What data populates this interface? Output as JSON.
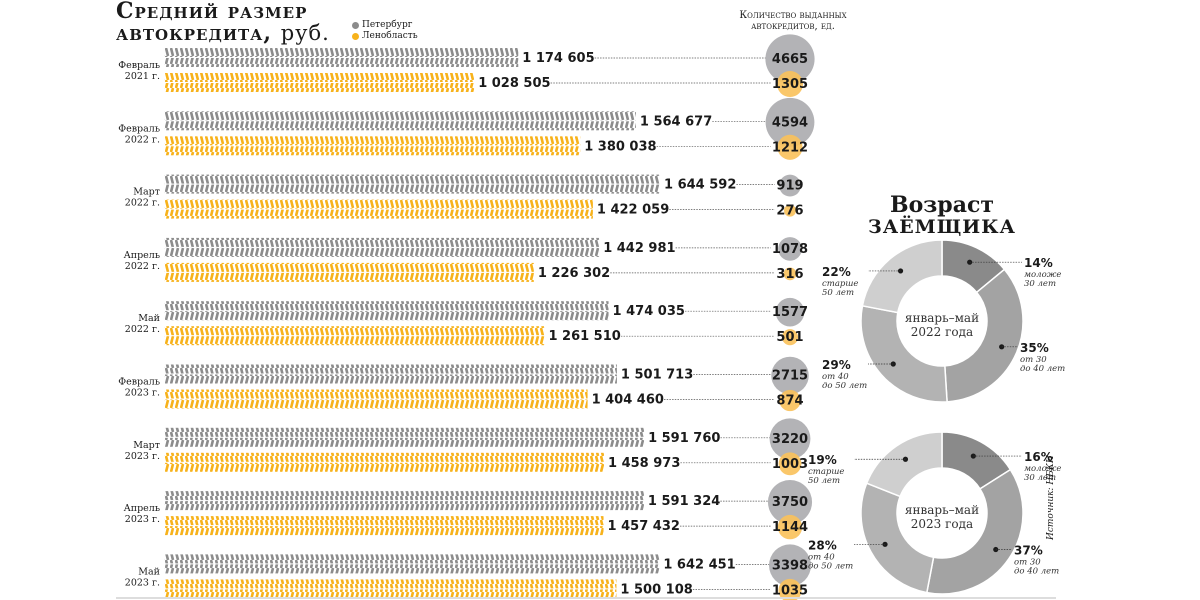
{
  "title": {
    "line1": "Средний размер",
    "line2": "автокредита,",
    "unit": "руб."
  },
  "legend": [
    {
      "label": "Петербург",
      "color": "#8c8c8c"
    },
    {
      "label": "Ленобласть",
      "color": "#f7b21b"
    }
  ],
  "count_title": {
    "line1": "Количество выданных",
    "line2": "автокредитов, ед."
  },
  "source": "Источник: НБКИ",
  "chart_data": [
    {
      "type": "bar",
      "title": "Средний размер автокредита, руб.",
      "categories": [
        [
          "Февраль",
          "2021 г."
        ],
        [
          "Февраль",
          "2022 г."
        ],
        [
          "Март",
          "2022 г."
        ],
        [
          "Апрель",
          "2022 г."
        ],
        [
          "Май",
          "2022 г."
        ],
        [
          "Февраль",
          "2023 г."
        ],
        [
          "Март",
          "2023 г."
        ],
        [
          "Апрель",
          "2023 г."
        ],
        [
          "Май",
          "2023 г."
        ]
      ],
      "series": [
        {
          "name": "Петербург",
          "color": "#8c8c8c",
          "values": [
            1174605,
            1564677,
            1644592,
            1442981,
            1474035,
            1501713,
            1591760,
            1591324,
            1642451
          ],
          "labels": [
            "1 174 605",
            "1 564 677",
            "1 644 592",
            "1 442 981",
            "1 474 035",
            "1 501 713",
            "1 591 760",
            "1 591 324",
            "1 642 451"
          ]
        },
        {
          "name": "Ленобласть",
          "color": "#f7b21b",
          "values": [
            1028505,
            1380038,
            1422059,
            1226302,
            1261510,
            1404460,
            1458973,
            1457432,
            1500108
          ],
          "labels": [
            "1 028 505",
            "1 380 038",
            "1 422 059",
            "1 226 302",
            "1 261 510",
            "1 404 460",
            "1 458 973",
            "1 457 432",
            "1 500 108"
          ]
        }
      ],
      "xlim": [
        0,
        2000000
      ]
    },
    {
      "type": "scatter",
      "title": "Количество выданных автокредитов, ед.",
      "series": [
        {
          "name": "Петербург",
          "color": "#b3b3b6",
          "values": [
            4665,
            4594,
            919,
            1078,
            1577,
            2715,
            3220,
            3750,
            3398
          ]
        },
        {
          "name": "Ленобласть",
          "color": "#f9c15a",
          "values": [
            1305,
            1212,
            276,
            316,
            501,
            874,
            1003,
            1144,
            1035
          ]
        }
      ]
    },
    {
      "type": "pie",
      "title": "Возраст заёмщика",
      "center_label": [
        "январь–май",
        "2022 года"
      ],
      "slices": [
        {
          "label": "моложе 30 лет",
          "pct_label": "14%",
          "value": 14,
          "color": "#8a8a8a",
          "desc": [
            "моложе",
            "30 лет"
          ]
        },
        {
          "label": "от 30 до 40 лет",
          "pct_label": "35%",
          "value": 35,
          "color": "#a3a3a3",
          "desc": [
            "от 30",
            "до 40 лет"
          ]
        },
        {
          "label": "от 40 до 50 лет",
          "pct_label": "29%",
          "value": 29,
          "color": "#b3b3b3",
          "desc": [
            "от 40",
            "до 50 лет"
          ]
        },
        {
          "label": "старше 50 лет",
          "pct_label": "22%",
          "value": 22,
          "color": "#cfcfcf",
          "desc": [
            "старше",
            "50 лет"
          ]
        }
      ]
    },
    {
      "type": "pie",
      "title": "Возраст заёмщика",
      "center_label": [
        "январь–май",
        "2023 года"
      ],
      "slices": [
        {
          "label": "моложе 30 лет",
          "pct_label": "16%",
          "value": 16,
          "color": "#8a8a8a",
          "desc": [
            "моложе",
            "30 лет"
          ]
        },
        {
          "label": "от 30 до 40 лет",
          "pct_label": "37%",
          "value": 37,
          "color": "#a3a3a3",
          "desc": [
            "от 30",
            "до 40 лет"
          ]
        },
        {
          "label": "от 40 до 50 лет",
          "pct_label": "28%",
          "value": 28,
          "color": "#b3b3b3",
          "desc": [
            "от 40",
            "до 50 лет"
          ]
        },
        {
          "label": "старше 50 лет",
          "pct_label": "19%",
          "value": 19,
          "color": "#cfcfcf",
          "desc": [
            "старше",
            "50 лет"
          ]
        }
      ]
    }
  ],
  "pie_title": {
    "line1": "Возраст",
    "line2": "заёмщика"
  }
}
